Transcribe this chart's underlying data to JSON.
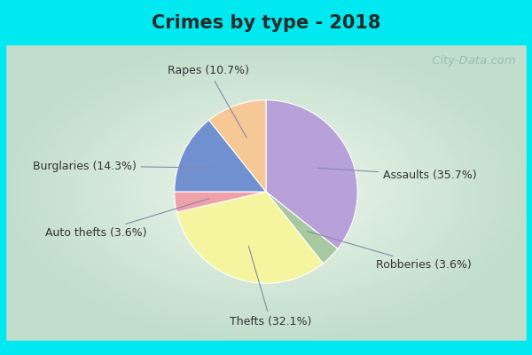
{
  "title": "Crimes by type - 2018",
  "plot_order_labels": [
    "Assaults",
    "Robberies",
    "Thefts",
    "Auto thefts",
    "Burglaries",
    "Rapes"
  ],
  "plot_order_values": [
    35.7,
    3.6,
    32.1,
    3.6,
    14.3,
    10.7
  ],
  "plot_order_colors": [
    "#b8a0d8",
    "#a8c8a0",
    "#f5f5a0",
    "#f0a0a8",
    "#7090d0",
    "#f5c896"
  ],
  "label_display": {
    "Assaults": "Assaults (35.7%)",
    "Robberies": "Robberies (3.6%)",
    "Thefts": "Thefts (32.1%)",
    "Auto thefts": "Auto thefts (3.6%)",
    "Burglaries": "Burglaries (14.3%)",
    "Rapes": "Rapes (10.7%)"
  },
  "background_cyan": "#00e8f0",
  "background_main_center": "#e8f5ee",
  "background_main_edge": "#b8ddc8",
  "title_fontsize": 15,
  "label_fontsize": 9,
  "watermark": " City-Data.com"
}
